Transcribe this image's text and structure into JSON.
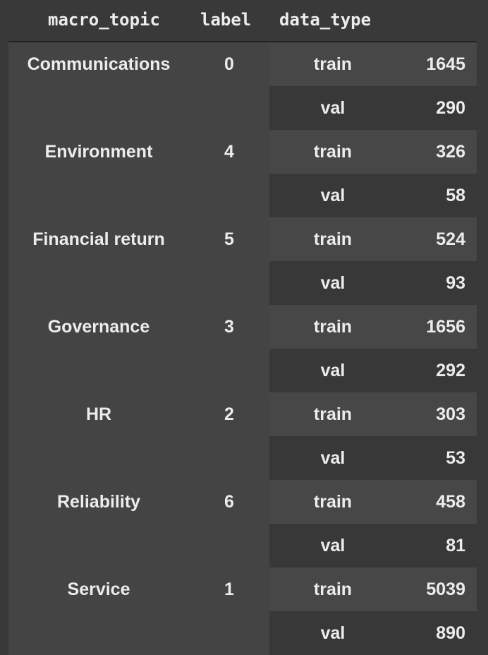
{
  "table": {
    "columns": [
      "macro_topic",
      "label",
      "data_type"
    ],
    "groups": [
      {
        "macro_topic": "Communications",
        "label": "0",
        "rows": [
          {
            "data_type": "train",
            "count": "1645"
          },
          {
            "data_type": "val",
            "count": "290"
          }
        ]
      },
      {
        "macro_topic": "Environment",
        "label": "4",
        "rows": [
          {
            "data_type": "train",
            "count": "326"
          },
          {
            "data_type": "val",
            "count": "58"
          }
        ]
      },
      {
        "macro_topic": "Financial return",
        "label": "5",
        "rows": [
          {
            "data_type": "train",
            "count": "524"
          },
          {
            "data_type": "val",
            "count": "93"
          }
        ]
      },
      {
        "macro_topic": "Governance",
        "label": "3",
        "rows": [
          {
            "data_type": "train",
            "count": "1656"
          },
          {
            "data_type": "val",
            "count": "292"
          }
        ]
      },
      {
        "macro_topic": "HR",
        "label": "2",
        "rows": [
          {
            "data_type": "train",
            "count": "303"
          },
          {
            "data_type": "val",
            "count": "53"
          }
        ]
      },
      {
        "macro_topic": "Reliability",
        "label": "6",
        "rows": [
          {
            "data_type": "train",
            "count": "458"
          },
          {
            "data_type": "val",
            "count": "81"
          }
        ]
      },
      {
        "macro_topic": "Service",
        "label": "1",
        "rows": [
          {
            "data_type": "train",
            "count": "5039"
          },
          {
            "data_type": "val",
            "count": "890"
          }
        ]
      }
    ]
  },
  "colors": {
    "background": "#393939",
    "row_light": "#474747",
    "row_dark": "#383838",
    "text": "#ececec"
  }
}
